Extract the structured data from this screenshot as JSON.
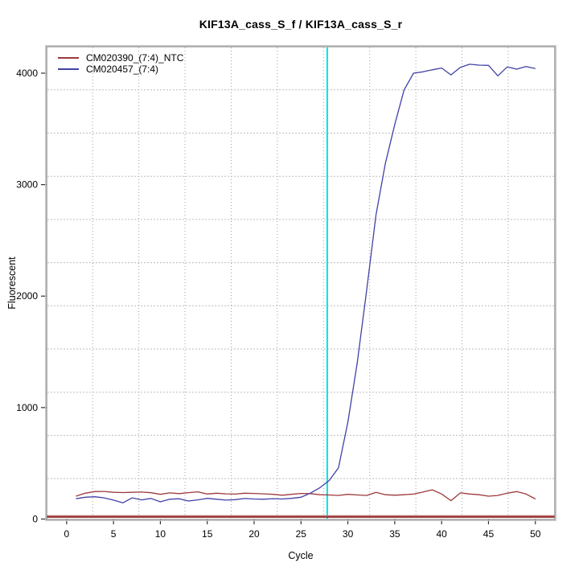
{
  "title": "KIF13A_cass_S_f / KIF13A_cass_S_r",
  "chart_data": {
    "type": "line",
    "title": "KIF13A_cass_S_f / KIF13A_cass_S_r",
    "xlabel": "Cycle",
    "ylabel": "Fluorescent",
    "legend_position": "top-left",
    "grid": true,
    "x_ticks": [
      0,
      5,
      10,
      15,
      20,
      25,
      30,
      35,
      40,
      45,
      50
    ],
    "y_ticks": [
      0,
      1000,
      2000,
      3000,
      4000
    ],
    "xlim": [
      -2.13,
      52.08
    ],
    "ylim": [
      -4,
      4238
    ],
    "x": [
      1,
      2,
      3,
      4,
      5,
      6,
      7,
      8,
      9,
      10,
      11,
      12,
      13,
      14,
      15,
      16,
      17,
      18,
      19,
      20,
      21,
      22,
      23,
      24,
      25,
      26,
      27,
      28,
      29,
      30,
      31,
      32,
      33,
      34,
      35,
      36,
      37,
      38,
      39,
      40,
      41,
      42,
      43,
      44,
      45,
      46,
      47,
      48,
      49,
      50
    ],
    "series": [
      {
        "name": "CM020390_(7:4)_NTC",
        "color": "#9c3a3a",
        "values": [
          205,
          232,
          246,
          248,
          240,
          238,
          240,
          242,
          236,
          222,
          235,
          228,
          237,
          244,
          225,
          232,
          226,
          224,
          232,
          230,
          226,
          222,
          214,
          222,
          230,
          228,
          218,
          216,
          212,
          222,
          216,
          212,
          240,
          218,
          214,
          218,
          224,
          242,
          262,
          225,
          165,
          235,
          225,
          218,
          205,
          212,
          232,
          246,
          225,
          180
        ]
      },
      {
        "name": "CM020457_(7:4)",
        "color": "#4141a7",
        "values": [
          182,
          196,
          200,
          190,
          170,
          145,
          190,
          172,
          185,
          155,
          178,
          182,
          162,
          172,
          186,
          178,
          170,
          174,
          184,
          180,
          178,
          183,
          180,
          186,
          196,
          232,
          280,
          345,
          460,
          870,
          1400,
          2050,
          2730,
          3190,
          3540,
          3850,
          4000,
          4012,
          4030,
          4046,
          3985,
          4052,
          4080,
          4072,
          4070,
          3976,
          4056,
          4036,
          4060,
          4042
        ]
      }
    ],
    "threshold_line": {
      "value": 20,
      "color": "#993333",
      "highlight_color": "#d49494"
    },
    "vertical_marker": {
      "cycle": 27.8,
      "color": "#00e5e5"
    }
  }
}
